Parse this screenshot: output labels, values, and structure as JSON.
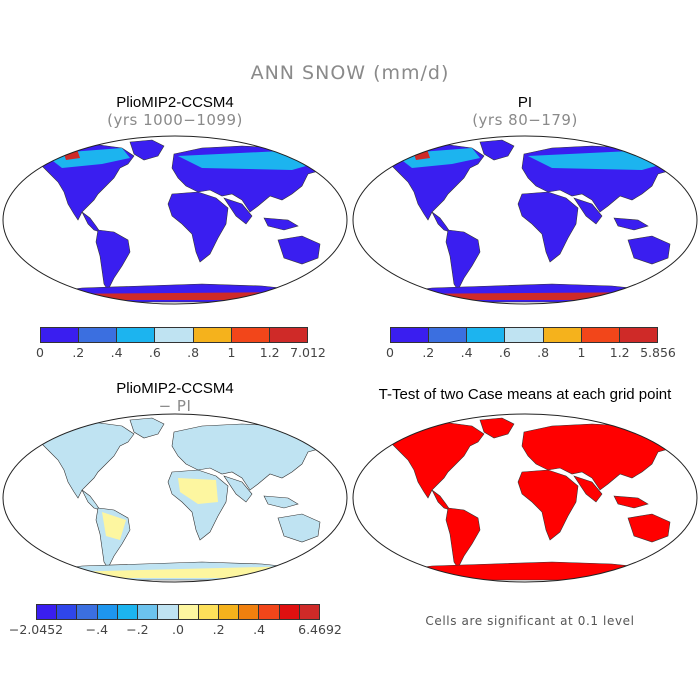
{
  "title": "ANN SNOW (mm/d)",
  "panels": {
    "top_left": {
      "title": "PlioMIP2-CCSM4",
      "subtitle": "(yrs 1000−1099)"
    },
    "top_right": {
      "title": "PI",
      "subtitle": "(yrs 80−179)"
    },
    "bottom_left": {
      "title": "PlioMIP2-CCSM4",
      "subtitle": "− PI"
    },
    "bottom_right": {
      "title": "T-Test of two Case means at each grid point",
      "note": "Cells are significant at 0.1 level"
    }
  },
  "colorbars": {
    "top_left": {
      "colors": [
        "#3a1ef0",
        "#3b6fe0",
        "#1cb4ef",
        "#bfe3f2",
        "#f5b21c",
        "#f2461a",
        "#cf2a28"
      ],
      "labels": [
        "0",
        ".2",
        ".4",
        ".6",
        ".8",
        "1",
        "1.2",
        "7.012"
      ]
    },
    "top_right": {
      "colors": [
        "#3a1ef0",
        "#3b6fe0",
        "#1cb4ef",
        "#bfe3f2",
        "#f5b21c",
        "#f2461a",
        "#cf2a28"
      ],
      "labels": [
        "0",
        ".2",
        ".4",
        ".6",
        ".8",
        "1",
        "1.2",
        "5.856"
      ]
    },
    "bottom_left": {
      "colors": [
        "#3a1ef0",
        "#2f46ea",
        "#3b6fe0",
        "#1e96ee",
        "#1cb4ef",
        "#6cc3ee",
        "#bfe3f2",
        "#fdf6a0",
        "#fde05a",
        "#f5b21c",
        "#f0800e",
        "#f2461a",
        "#e01010",
        "#cf2a28"
      ],
      "labels": [
        "−2.0452",
        "−.4",
        "−.2",
        ".0",
        ".2",
        ".4",
        "6.4692"
      ]
    }
  },
  "map_colors": {
    "ocean": "#ffffff",
    "snow_low": "#3a1ef0",
    "snow_mid": "#1cb4ef",
    "snow_high": "#cf2a28",
    "diff_neutral": "#bfe3f2",
    "diff_pos": "#fdf6a0",
    "significant": "#ff0000"
  }
}
